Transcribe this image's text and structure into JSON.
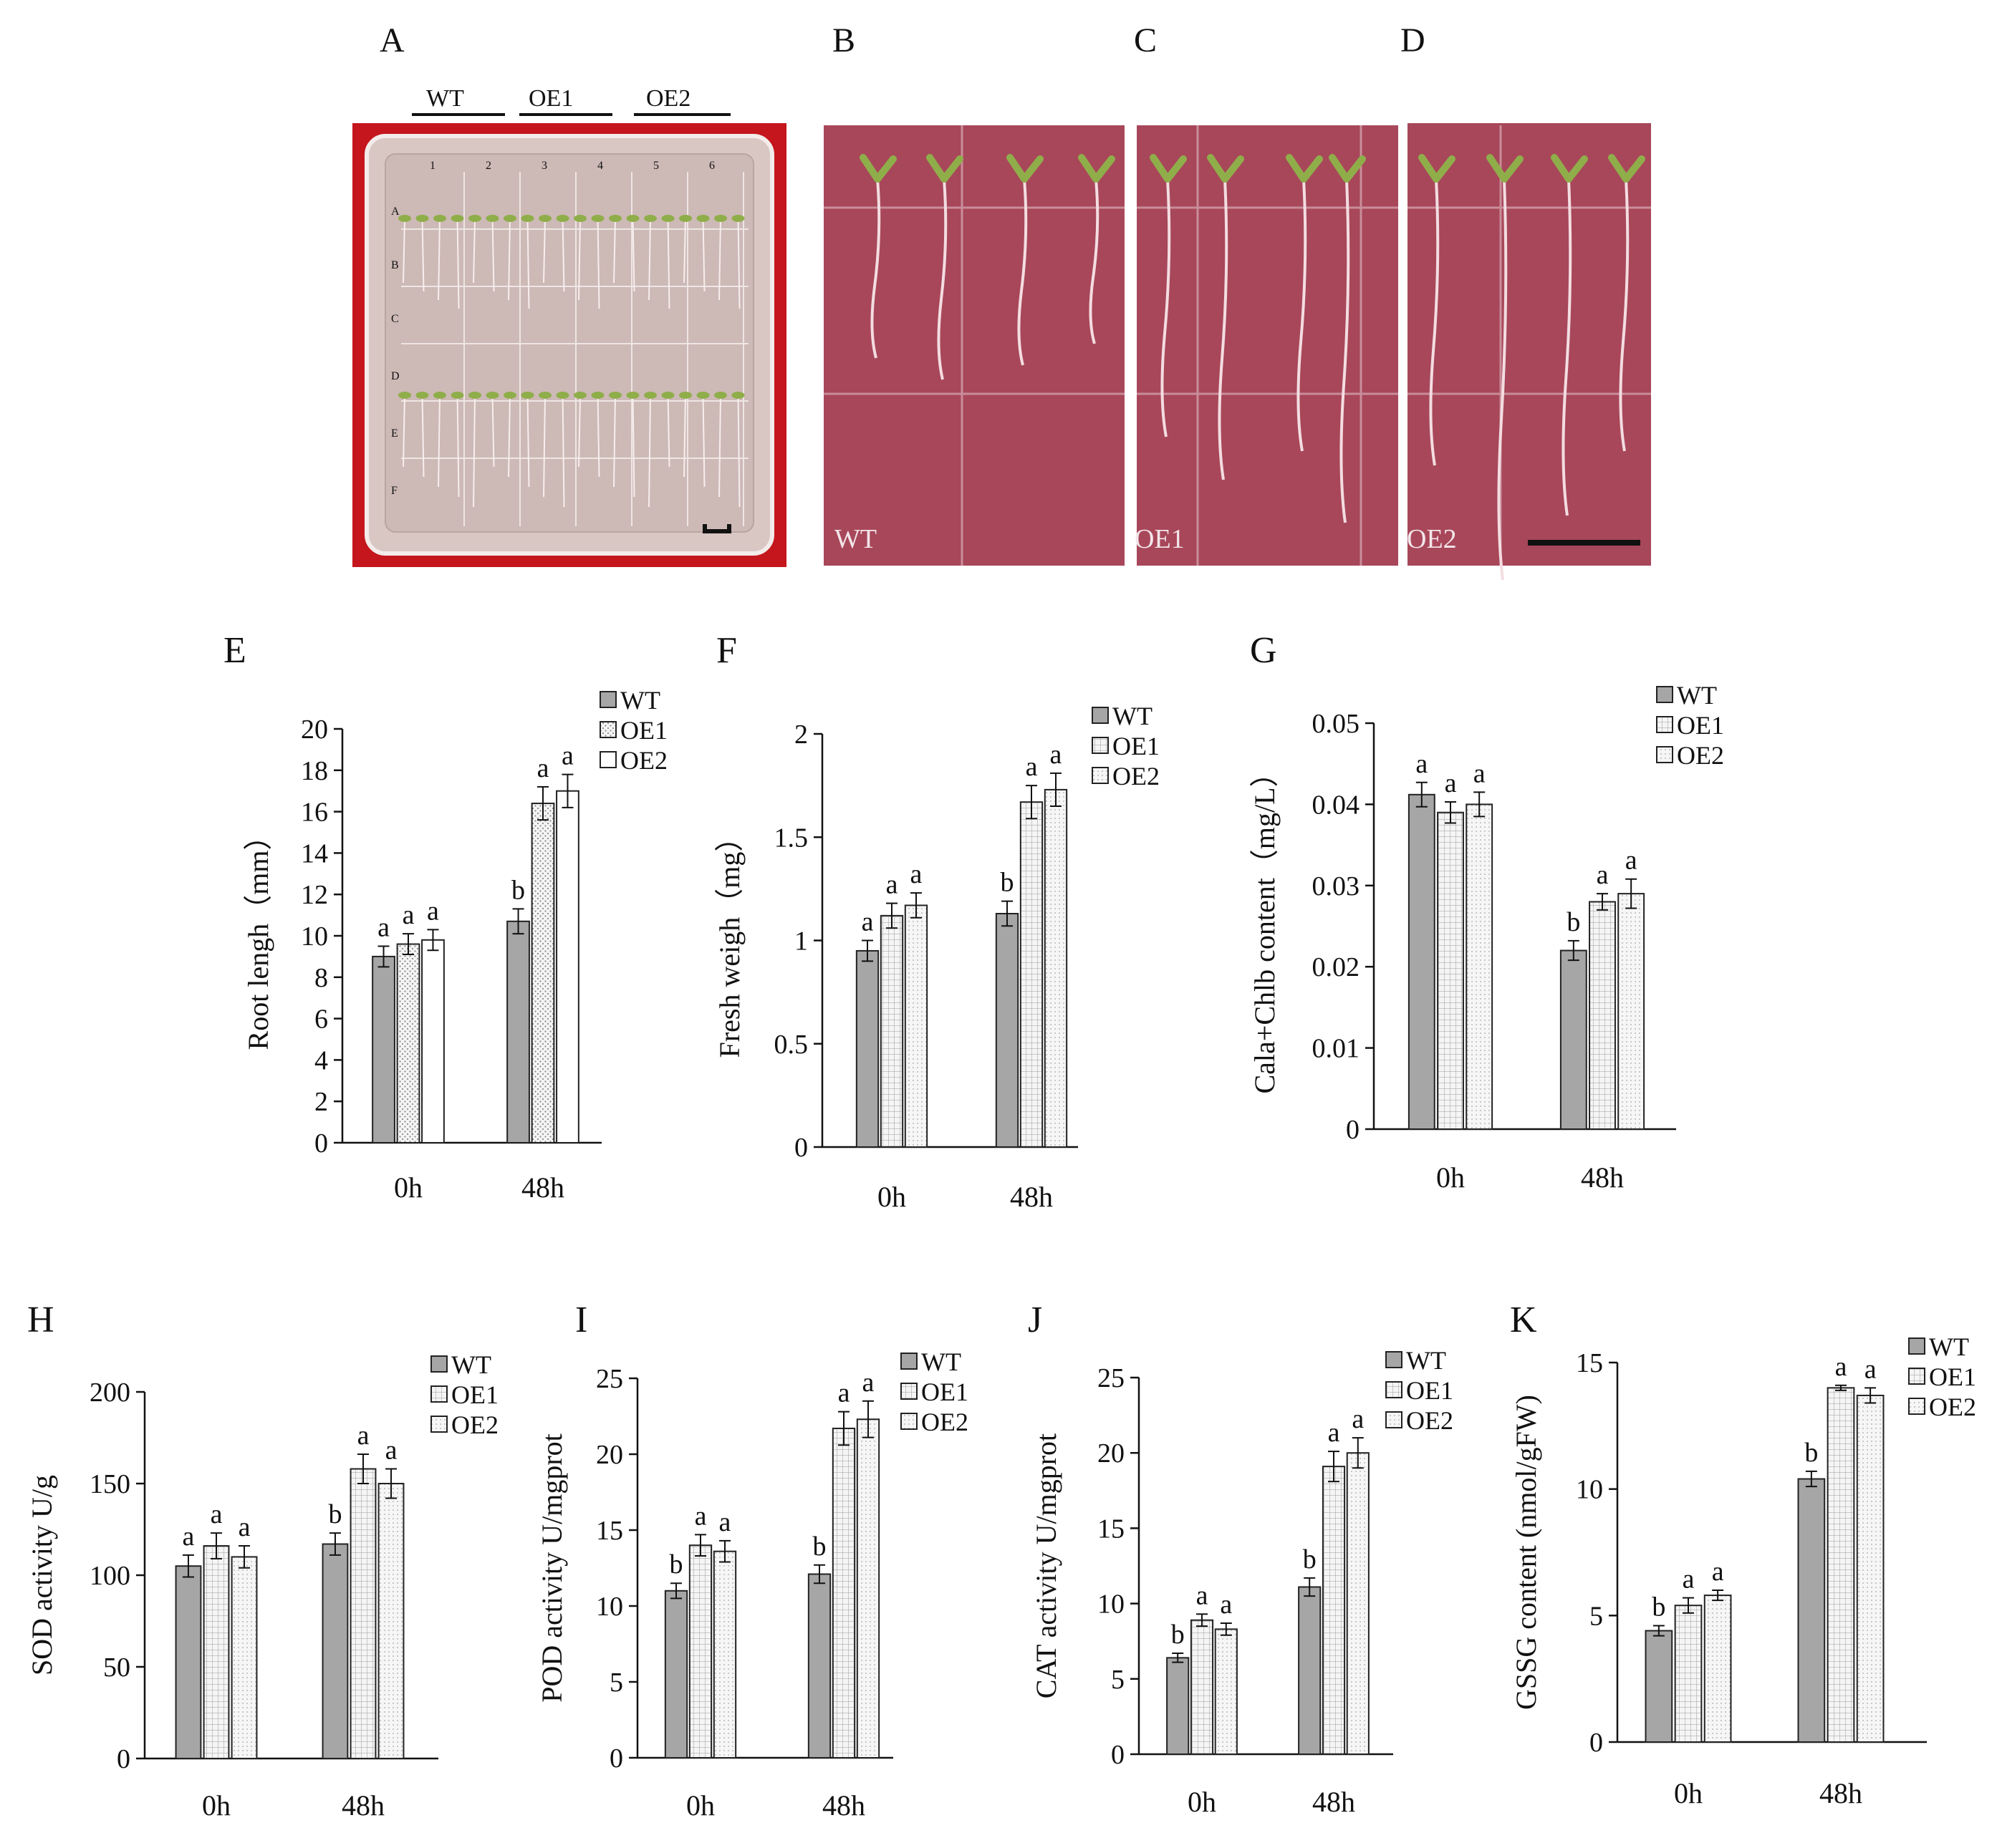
{
  "photos": {
    "A": {
      "letter": "A",
      "headers": [
        "WT",
        "OE1",
        "OE2"
      ],
      "row_letters": [
        "A",
        "B",
        "C",
        "D",
        "E",
        "F"
      ],
      "col_numbers": [
        "1",
        "2",
        "3",
        "4",
        "5",
        "6"
      ]
    },
    "B": {
      "letter": "B",
      "label": "WT"
    },
    "C": {
      "letter": "C",
      "label": "OE1"
    },
    "D": {
      "letter": "D",
      "label": "OE2"
    },
    "colors": {
      "background": "#a8475a",
      "frame": "#c4161c",
      "plant": "#8fae4a",
      "root": "#f3dde1"
    }
  },
  "series_colors": [
    "#a6a6a6",
    "#e6e6e6",
    "#f2f2f2"
  ],
  "chart_data": [
    {
      "id": "E",
      "letter": "E",
      "type": "bar",
      "categories": [
        "0h",
        "48h"
      ],
      "series": [
        {
          "name": "WT",
          "values": [
            9.0,
            10.7
          ],
          "errors": [
            0.5,
            0.6
          ],
          "letters": [
            "a",
            "b"
          ]
        },
        {
          "name": "OE1",
          "values": [
            9.6,
            16.4
          ],
          "errors": [
            0.5,
            0.8
          ],
          "letters": [
            "a",
            "a"
          ]
        },
        {
          "name": "OE2",
          "values": [
            9.8,
            17.0
          ],
          "errors": [
            0.5,
            0.8
          ],
          "letters": [
            "a",
            "a"
          ]
        }
      ],
      "ylabel": "Root lengh（mm）",
      "ylim": [
        0,
        20
      ],
      "yticks": [
        "0",
        "2",
        "4",
        "6",
        "8",
        "10",
        "12",
        "14",
        "16",
        "18",
        "20"
      ],
      "legend": "top-right",
      "grid": false
    },
    {
      "id": "F",
      "letter": "F",
      "type": "bar",
      "categories": [
        "0h",
        "48h"
      ],
      "series": [
        {
          "name": "WT",
          "values": [
            0.95,
            1.13
          ],
          "errors": [
            0.05,
            0.06
          ],
          "letters": [
            "a",
            "b"
          ]
        },
        {
          "name": "OE1",
          "values": [
            1.12,
            1.67
          ],
          "errors": [
            0.06,
            0.08
          ],
          "letters": [
            "a",
            "a"
          ]
        },
        {
          "name": "OE2",
          "values": [
            1.17,
            1.73
          ],
          "errors": [
            0.06,
            0.08
          ],
          "letters": [
            "a",
            "a"
          ]
        }
      ],
      "ylabel": "Fresh weigh（mg）",
      "ylim": [
        0,
        2
      ],
      "yticks": [
        "0",
        "0.5",
        "1",
        "1.5",
        "2"
      ],
      "legend": "top-right",
      "grid": false
    },
    {
      "id": "G",
      "letter": "G",
      "type": "bar",
      "categories": [
        "0h",
        "48h"
      ],
      "series": [
        {
          "name": "WT",
          "values": [
            0.0412,
            0.022
          ],
          "errors": [
            0.0015,
            0.0012
          ],
          "letters": [
            "a",
            "b"
          ]
        },
        {
          "name": "OE1",
          "values": [
            0.039,
            0.028
          ],
          "errors": [
            0.0013,
            0.001
          ],
          "letters": [
            "a",
            "a"
          ]
        },
        {
          "name": "OE2",
          "values": [
            0.04,
            0.029
          ],
          "errors": [
            0.0015,
            0.0018
          ],
          "letters": [
            "a",
            "a"
          ]
        }
      ],
      "ylabel": "Cala+Chlb content（mg/L）",
      "ylim": [
        0,
        0.05
      ],
      "yticks": [
        "0",
        "0.01",
        "0.02",
        "0.03",
        "0.04",
        "0.05"
      ],
      "legend": "top-right",
      "grid": false
    },
    {
      "id": "H",
      "letter": "H",
      "type": "bar",
      "categories": [
        "0h",
        "48h"
      ],
      "series": [
        {
          "name": "WT",
          "values": [
            105,
            117
          ],
          "errors": [
            6,
            6
          ],
          "letters": [
            "a",
            "b"
          ]
        },
        {
          "name": "OE1",
          "values": [
            116,
            158
          ],
          "errors": [
            7,
            8
          ],
          "letters": [
            "a",
            "a"
          ]
        },
        {
          "name": "OE2",
          "values": [
            110,
            150
          ],
          "errors": [
            6,
            8
          ],
          "letters": [
            "a",
            "a"
          ]
        }
      ],
      "ylabel": "SOD activity U/g",
      "ylim": [
        0,
        200
      ],
      "yticks": [
        "0",
        "50",
        "100",
        "150",
        "200"
      ],
      "legend": "top-right",
      "grid": false
    },
    {
      "id": "I",
      "letter": "I",
      "type": "bar",
      "categories": [
        "0h",
        "48h"
      ],
      "series": [
        {
          "name": "WT",
          "values": [
            11.0,
            12.1
          ],
          "errors": [
            0.5,
            0.6
          ],
          "letters": [
            "b",
            "b"
          ]
        },
        {
          "name": "OE1",
          "values": [
            14.0,
            21.7
          ],
          "errors": [
            0.7,
            1.1
          ],
          "letters": [
            "a",
            "a"
          ]
        },
        {
          "name": "OE2",
          "values": [
            13.6,
            22.3
          ],
          "errors": [
            0.7,
            1.2
          ],
          "letters": [
            "a",
            "a"
          ]
        }
      ],
      "ylabel": "POD activity U/mgprot",
      "ylim": [
        0,
        25
      ],
      "yticks": [
        "0",
        "5",
        "10",
        "15",
        "20",
        "25"
      ],
      "legend": "top-right",
      "grid": false
    },
    {
      "id": "J",
      "letter": "J",
      "type": "bar",
      "categories": [
        "0h",
        "48h"
      ],
      "series": [
        {
          "name": "WT",
          "values": [
            6.4,
            11.1
          ],
          "errors": [
            0.3,
            0.6
          ],
          "letters": [
            "b",
            "b"
          ]
        },
        {
          "name": "OE1",
          "values": [
            8.9,
            19.1
          ],
          "errors": [
            0.4,
            1.0
          ],
          "letters": [
            "a",
            "a"
          ]
        },
        {
          "name": "OE2",
          "values": [
            8.3,
            20.0
          ],
          "errors": [
            0.4,
            1.0
          ],
          "letters": [
            "a",
            "a"
          ]
        }
      ],
      "ylabel": "CAT activity U/mgprot",
      "ylim": [
        0,
        25
      ],
      "yticks": [
        "0",
        "5",
        "10",
        "15",
        "20",
        "25"
      ],
      "legend": "top-right",
      "grid": false
    },
    {
      "id": "K",
      "letter": "K",
      "type": "bar",
      "categories": [
        "0h",
        "48h"
      ],
      "series": [
        {
          "name": "WT",
          "values": [
            4.4,
            10.4
          ],
          "errors": [
            0.2,
            0.3
          ],
          "letters": [
            "b",
            "b"
          ]
        },
        {
          "name": "OE1",
          "values": [
            5.4,
            14.0
          ],
          "errors": [
            0.3,
            0.1
          ],
          "letters": [
            "a",
            "a"
          ]
        },
        {
          "name": "OE2",
          "values": [
            5.8,
            13.7
          ],
          "errors": [
            0.2,
            0.3
          ],
          "letters": [
            "a",
            "a"
          ]
        }
      ],
      "ylabel": "GSSG content (nmol/gFW)",
      "ylim": [
        0,
        15
      ],
      "yticks": [
        "0",
        "5",
        "10",
        "15"
      ],
      "legend": "top-right",
      "grid": false
    }
  ]
}
